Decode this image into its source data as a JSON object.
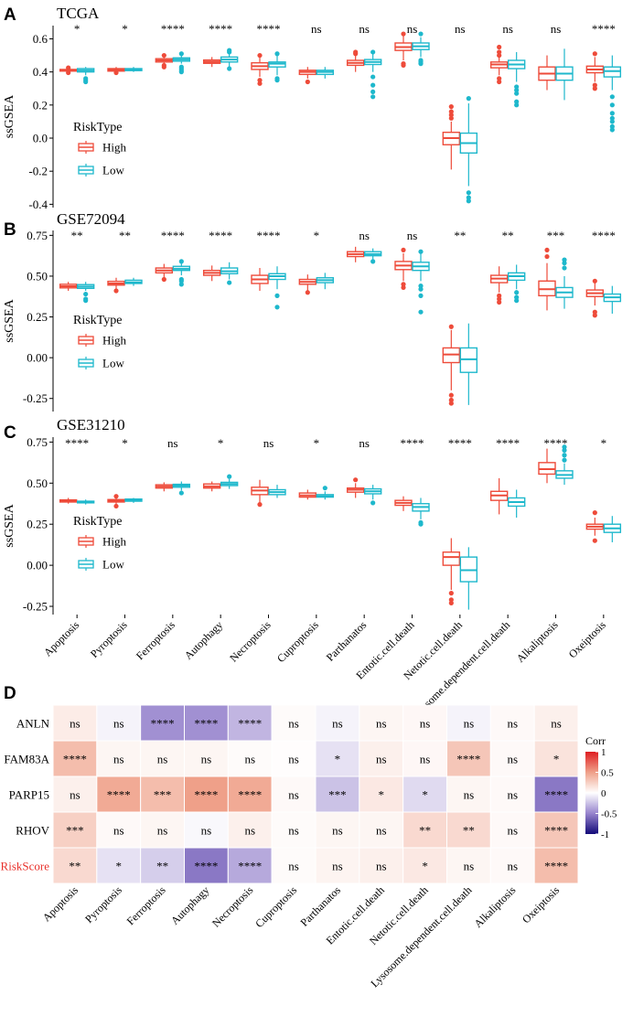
{
  "colors": {
    "high": "#EE4B3A",
    "low": "#1EB8CC",
    "riskscore_label": "#E8302A"
  },
  "box_legend": {
    "title": "RiskType",
    "items": [
      "High",
      "Low"
    ]
  },
  "categories": [
    "Apoptosis",
    "Pyroptosis",
    "Ferroptosis",
    "Autophagy",
    "Necroptosis",
    "Cuproptosis",
    "Parthanatos",
    "Entotic.cell.death",
    "Netotic.cell.death",
    "Lysosome.dependent.cell.death",
    "Alkaliptosis",
    "Oxeiptosis"
  ],
  "panels": [
    {
      "letter": "A",
      "title": "TCGA",
      "ylabel": "ssGSEA",
      "ylim": [
        -0.42,
        0.68
      ],
      "yticks": [
        -0.4,
        -0.2,
        0.0,
        0.2,
        0.4,
        0.6
      ],
      "ytick_labels": [
        "-0.4",
        "-0.2",
        "0.0",
        "0.2",
        "0.4",
        "0.6"
      ],
      "sig": [
        "*",
        "*",
        "****",
        "****",
        "****",
        "ns",
        "ns",
        "ns",
        "ns",
        "ns",
        "ns",
        "****"
      ],
      "high": [
        {
          "lw": 0.4,
          "q1": 0.405,
          "med": 0.41,
          "q3": 0.415,
          "uw": 0.42,
          "out": [
            0.395,
            0.425
          ]
        },
        {
          "lw": 0.4,
          "q1": 0.405,
          "med": 0.412,
          "q3": 0.42,
          "uw": 0.43,
          "out": [
            0.395
          ]
        },
        {
          "lw": 0.445,
          "q1": 0.46,
          "med": 0.47,
          "q3": 0.48,
          "uw": 0.495,
          "out": [
            0.43,
            0.44,
            0.5
          ]
        },
        {
          "lw": 0.43,
          "q1": 0.452,
          "med": 0.462,
          "q3": 0.472,
          "uw": 0.49,
          "out": []
        },
        {
          "lw": 0.37,
          "q1": 0.415,
          "med": 0.435,
          "q3": 0.455,
          "uw": 0.49,
          "out": [
            0.35,
            0.33,
            0.5
          ]
        },
        {
          "lw": 0.36,
          "q1": 0.385,
          "med": 0.4,
          "q3": 0.41,
          "uw": 0.43,
          "out": [
            0.34
          ]
        },
        {
          "lw": 0.4,
          "q1": 0.44,
          "med": 0.455,
          "q3": 0.47,
          "uw": 0.5,
          "out": [
            0.51,
            0.52
          ]
        },
        {
          "lw": 0.47,
          "q1": 0.53,
          "med": 0.55,
          "q3": 0.575,
          "uw": 0.62,
          "out": [
            0.45,
            0.44,
            0.63
          ]
        },
        {
          "lw": -0.19,
          "q1": -0.04,
          "med": 0.0,
          "q3": 0.035,
          "uw": 0.1,
          "out": [
            0.12,
            0.14,
            0.16,
            0.19
          ]
        },
        {
          "lw": 0.38,
          "q1": 0.425,
          "med": 0.445,
          "q3": 0.46,
          "uw": 0.49,
          "out": [
            0.5,
            0.52,
            0.55,
            0.36,
            0.34
          ]
        },
        {
          "lw": 0.29,
          "q1": 0.35,
          "med": 0.39,
          "q3": 0.43,
          "uw": 0.5,
          "out": []
        },
        {
          "lw": 0.34,
          "q1": 0.395,
          "med": 0.415,
          "q3": 0.435,
          "uw": 0.49,
          "out": [
            0.32,
            0.3,
            0.51
          ]
        }
      ],
      "low": [
        {
          "lw": 0.38,
          "q1": 0.4,
          "med": 0.41,
          "q3": 0.42,
          "uw": 0.43,
          "out": [
            0.36,
            0.35,
            0.34
          ]
        },
        {
          "lw": 0.4,
          "q1": 0.408,
          "med": 0.414,
          "q3": 0.42,
          "uw": 0.43,
          "out": []
        },
        {
          "lw": 0.45,
          "q1": 0.465,
          "med": 0.475,
          "q3": 0.485,
          "uw": 0.5,
          "out": [
            0.43,
            0.42,
            0.41,
            0.4,
            0.51
          ]
        },
        {
          "lw": 0.43,
          "q1": 0.46,
          "med": 0.475,
          "q3": 0.49,
          "uw": 0.51,
          "out": [
            0.52,
            0.53,
            0.42
          ]
        },
        {
          "lw": 0.38,
          "q1": 0.43,
          "med": 0.45,
          "q3": 0.46,
          "uw": 0.5,
          "out": [
            0.36,
            0.35,
            0.51
          ]
        },
        {
          "lw": 0.36,
          "q1": 0.385,
          "med": 0.4,
          "q3": 0.41,
          "uw": 0.43,
          "out": []
        },
        {
          "lw": 0.4,
          "q1": 0.445,
          "med": 0.46,
          "q3": 0.475,
          "uw": 0.51,
          "out": [
            0.37,
            0.32,
            0.28,
            0.25,
            0.52
          ]
        },
        {
          "lw": 0.49,
          "q1": 0.535,
          "med": 0.555,
          "q3": 0.575,
          "uw": 0.61,
          "out": [
            0.47,
            0.46,
            0.45,
            0.63
          ]
        },
        {
          "lw": -0.29,
          "q1": -0.09,
          "med": -0.03,
          "q3": 0.03,
          "uw": 0.21,
          "out": [
            -0.33,
            -0.36,
            -0.38,
            0.24
          ]
        },
        {
          "lw": 0.34,
          "q1": 0.42,
          "med": 0.445,
          "q3": 0.47,
          "uw": 0.52,
          "out": [
            0.31,
            0.29,
            0.27,
            0.22,
            0.2
          ]
        },
        {
          "lw": 0.23,
          "q1": 0.35,
          "med": 0.39,
          "q3": 0.43,
          "uw": 0.54,
          "out": []
        },
        {
          "lw": 0.29,
          "q1": 0.37,
          "med": 0.405,
          "q3": 0.43,
          "uw": 0.5,
          "out": [
            0.25,
            0.2,
            0.15,
            0.12,
            0.1,
            0.07,
            0.05
          ]
        }
      ]
    },
    {
      "letter": "B",
      "title": "GSE72094",
      "ylabel": "ssGSEA",
      "ylim": [
        -0.33,
        0.78
      ],
      "yticks": [
        -0.25,
        0.0,
        0.25,
        0.5,
        0.75
      ],
      "ytick_labels": [
        "-0.25",
        "0.00",
        "0.25",
        "0.50",
        "0.75"
      ],
      "sig": [
        "**",
        "**",
        "****",
        "****",
        "****",
        "*",
        "ns",
        "ns",
        "**",
        "**",
        "***",
        "****"
      ],
      "high": [
        {
          "lw": 0.41,
          "q1": 0.428,
          "med": 0.438,
          "q3": 0.45,
          "uw": 0.465,
          "out": []
        },
        {
          "lw": 0.42,
          "q1": 0.445,
          "med": 0.455,
          "q3": 0.468,
          "uw": 0.49,
          "out": [
            0.41
          ]
        },
        {
          "lw": 0.49,
          "q1": 0.52,
          "med": 0.535,
          "q3": 0.55,
          "uw": 0.575,
          "out": [
            0.48
          ]
        },
        {
          "lw": 0.47,
          "q1": 0.505,
          "med": 0.52,
          "q3": 0.535,
          "uw": 0.565,
          "out": []
        },
        {
          "lw": 0.41,
          "q1": 0.455,
          "med": 0.48,
          "q3": 0.505,
          "uw": 0.55,
          "out": []
        },
        {
          "lw": 0.41,
          "q1": 0.45,
          "med": 0.465,
          "q3": 0.48,
          "uw": 0.51,
          "out": [
            0.4
          ]
        },
        {
          "lw": 0.585,
          "q1": 0.62,
          "med": 0.635,
          "q3": 0.65,
          "uw": 0.68,
          "out": []
        },
        {
          "lw": 0.47,
          "q1": 0.54,
          "med": 0.565,
          "q3": 0.59,
          "uw": 0.64,
          "out": [
            0.45,
            0.43,
            0.66
          ]
        },
        {
          "lw": -0.2,
          "q1": -0.03,
          "med": 0.02,
          "q3": 0.06,
          "uw": 0.17,
          "out": [
            -0.23,
            -0.26,
            -0.28,
            0.19
          ]
        },
        {
          "lw": 0.4,
          "q1": 0.46,
          "med": 0.485,
          "q3": 0.505,
          "uw": 0.56,
          "out": [
            0.38,
            0.36,
            0.34
          ]
        },
        {
          "lw": 0.29,
          "q1": 0.38,
          "med": 0.42,
          "q3": 0.47,
          "uw": 0.58,
          "out": [
            0.62,
            0.66
          ]
        },
        {
          "lw": 0.32,
          "q1": 0.375,
          "med": 0.395,
          "q3": 0.415,
          "uw": 0.46,
          "out": [
            0.28,
            0.26,
            0.47
          ]
        }
      ],
      "low": [
        {
          "lw": 0.41,
          "q1": 0.425,
          "med": 0.436,
          "q3": 0.448,
          "uw": 0.465,
          "out": [
            0.39,
            0.36,
            0.35
          ]
        },
        {
          "lw": 0.44,
          "q1": 0.455,
          "med": 0.462,
          "q3": 0.475,
          "uw": 0.49,
          "out": []
        },
        {
          "lw": 0.505,
          "q1": 0.535,
          "med": 0.545,
          "q3": 0.56,
          "uw": 0.58,
          "out": [
            0.48,
            0.47,
            0.45,
            0.59
          ]
        },
        {
          "lw": 0.48,
          "q1": 0.515,
          "med": 0.53,
          "q3": 0.55,
          "uw": 0.585,
          "out": [
            0.46
          ]
        },
        {
          "lw": 0.42,
          "q1": 0.48,
          "med": 0.5,
          "q3": 0.515,
          "uw": 0.56,
          "out": [
            0.38,
            0.31
          ]
        },
        {
          "lw": 0.42,
          "q1": 0.46,
          "med": 0.475,
          "q3": 0.49,
          "uw": 0.52,
          "out": []
        },
        {
          "lw": 0.6,
          "q1": 0.625,
          "med": 0.635,
          "q3": 0.65,
          "uw": 0.67,
          "out": [
            0.59
          ]
        },
        {
          "lw": 0.47,
          "q1": 0.535,
          "med": 0.56,
          "q3": 0.585,
          "uw": 0.64,
          "out": [
            0.44,
            0.42,
            0.38,
            0.28,
            0.65
          ]
        },
        {
          "lw": -0.29,
          "q1": -0.09,
          "med": -0.01,
          "q3": 0.06,
          "uw": 0.21,
          "out": []
        },
        {
          "lw": 0.42,
          "q1": 0.475,
          "med": 0.5,
          "q3": 0.52,
          "uw": 0.57,
          "out": [
            0.4,
            0.37,
            0.35
          ]
        },
        {
          "lw": 0.3,
          "q1": 0.37,
          "med": 0.4,
          "q3": 0.43,
          "uw": 0.5,
          "out": [
            0.55,
            0.58,
            0.6
          ]
        },
        {
          "lw": 0.27,
          "q1": 0.345,
          "med": 0.37,
          "q3": 0.39,
          "uw": 0.44,
          "out": []
        }
      ]
    },
    {
      "letter": "C",
      "title": "GSE31210",
      "ylabel": "ssGSEA",
      "ylim": [
        -0.3,
        0.78
      ],
      "yticks": [
        -0.25,
        0.0,
        0.25,
        0.5,
        0.75
      ],
      "ytick_labels": [
        "-0.25",
        "0.00",
        "0.25",
        "0.50",
        "0.75"
      ],
      "sig": [
        "****",
        "*",
        "ns",
        "*",
        "ns",
        "*",
        "ns",
        "****",
        "****",
        "****",
        "****",
        "*"
      ],
      "high": [
        {
          "lw": 0.375,
          "q1": 0.385,
          "med": 0.39,
          "q3": 0.398,
          "uw": 0.41,
          "out": []
        },
        {
          "lw": 0.37,
          "q1": 0.385,
          "med": 0.393,
          "q3": 0.4,
          "uw": 0.41,
          "out": [
            0.42,
            0.36
          ]
        },
        {
          "lw": 0.45,
          "q1": 0.47,
          "med": 0.48,
          "q3": 0.49,
          "uw": 0.505,
          "out": []
        },
        {
          "lw": 0.45,
          "q1": 0.47,
          "med": 0.48,
          "q3": 0.495,
          "uw": 0.51,
          "out": []
        },
        {
          "lw": 0.38,
          "q1": 0.43,
          "med": 0.455,
          "q3": 0.475,
          "uw": 0.52,
          "out": [
            0.37
          ]
        },
        {
          "lw": 0.4,
          "q1": 0.415,
          "med": 0.425,
          "q3": 0.44,
          "uw": 0.46,
          "out": []
        },
        {
          "lw": 0.41,
          "q1": 0.445,
          "med": 0.46,
          "q3": 0.47,
          "uw": 0.5,
          "out": [
            0.52
          ]
        },
        {
          "lw": 0.33,
          "q1": 0.365,
          "med": 0.38,
          "q3": 0.395,
          "uw": 0.42,
          "out": []
        },
        {
          "lw": -0.15,
          "q1": 0.0,
          "med": 0.05,
          "q3": 0.08,
          "uw": 0.165,
          "out": [
            -0.17,
            -0.21,
            -0.23
          ]
        },
        {
          "lw": 0.31,
          "q1": 0.395,
          "med": 0.425,
          "q3": 0.45,
          "uw": 0.53,
          "out": []
        },
        {
          "lw": 0.5,
          "q1": 0.555,
          "med": 0.585,
          "q3": 0.625,
          "uw": 0.71,
          "out": []
        },
        {
          "lw": 0.18,
          "q1": 0.22,
          "med": 0.235,
          "q3": 0.25,
          "uw": 0.29,
          "out": [
            0.32,
            0.15
          ]
        }
      ],
      "low": [
        {
          "lw": 0.37,
          "q1": 0.38,
          "med": 0.385,
          "q3": 0.39,
          "uw": 0.4,
          "out": []
        },
        {
          "lw": 0.38,
          "q1": 0.39,
          "med": 0.397,
          "q3": 0.403,
          "uw": 0.41,
          "out": []
        },
        {
          "lw": 0.455,
          "q1": 0.475,
          "med": 0.485,
          "q3": 0.493,
          "uw": 0.51,
          "out": [
            0.44
          ]
        },
        {
          "lw": 0.465,
          "q1": 0.485,
          "med": 0.495,
          "q3": 0.505,
          "uw": 0.525,
          "out": [
            0.54
          ]
        },
        {
          "lw": 0.41,
          "q1": 0.43,
          "med": 0.445,
          "q3": 0.46,
          "uw": 0.49,
          "out": []
        },
        {
          "lw": 0.4,
          "q1": 0.415,
          "med": 0.42,
          "q3": 0.43,
          "uw": 0.45,
          "out": [
            0.47
          ]
        },
        {
          "lw": 0.4,
          "q1": 0.435,
          "med": 0.45,
          "q3": 0.465,
          "uw": 0.49,
          "out": [
            0.38
          ]
        },
        {
          "lw": 0.28,
          "q1": 0.33,
          "med": 0.355,
          "q3": 0.375,
          "uw": 0.41,
          "out": [
            0.26,
            0.25
          ]
        },
        {
          "lw": -0.27,
          "q1": -0.1,
          "med": -0.03,
          "q3": 0.05,
          "uw": 0.11,
          "out": []
        },
        {
          "lw": 0.29,
          "q1": 0.36,
          "med": 0.385,
          "q3": 0.41,
          "uw": 0.46,
          "out": []
        },
        {
          "lw": 0.49,
          "q1": 0.53,
          "med": 0.55,
          "q3": 0.575,
          "uw": 0.62,
          "out": [
            0.64,
            0.67,
            0.7,
            0.72
          ]
        },
        {
          "lw": 0.14,
          "q1": 0.2,
          "med": 0.225,
          "q3": 0.25,
          "uw": 0.3,
          "out": []
        }
      ]
    }
  ],
  "heatmap": {
    "letter": "D",
    "rows": [
      "ANLN",
      "FAM83A",
      "PARP15",
      "RHOV",
      "RiskScore"
    ],
    "columns": [
      "Apoptosis",
      "Pyroptosis",
      "Ferroptosis",
      "Autophagy",
      "Necroptosis",
      "Cuproptosis",
      "Parthanatos",
      "Entotic.cell.death",
      "Netotic.cell.death",
      "Lysosome.dependent.cell.death",
      "Alkaliptosis",
      "Oxeiptosis"
    ],
    "values": [
      [
        0.1,
        -0.05,
        -0.45,
        -0.45,
        -0.3,
        0.02,
        -0.05,
        0.05,
        0.04,
        -0.05,
        0.03,
        0.08
      ],
      [
        0.35,
        0.05,
        0.05,
        0.05,
        0.02,
        0.01,
        -0.12,
        0.08,
        0.04,
        0.3,
        0.03,
        0.15
      ],
      [
        0.08,
        0.45,
        0.35,
        0.5,
        0.45,
        0.03,
        -0.25,
        0.12,
        -0.15,
        0.05,
        0.03,
        -0.55
      ],
      [
        0.25,
        0.03,
        0.05,
        -0.03,
        0.08,
        0.02,
        0.05,
        0.05,
        0.2,
        0.2,
        0.03,
        0.3
      ],
      [
        0.2,
        -0.12,
        -0.2,
        -0.55,
        -0.35,
        0.02,
        0.06,
        0.08,
        0.12,
        0.05,
        0.03,
        0.35
      ]
    ],
    "labels": [
      [
        "ns",
        "ns",
        "****",
        "****",
        "****",
        "ns",
        "ns",
        "ns",
        "ns",
        "ns",
        "ns",
        "ns"
      ],
      [
        "****",
        "ns",
        "ns",
        "ns",
        "ns",
        "ns",
        "*",
        "ns",
        "ns",
        "****",
        "ns",
        "*"
      ],
      [
        "ns",
        "****",
        "***",
        "****",
        "****",
        "ns",
        "***",
        "*",
        "*",
        "ns",
        "ns",
        "****"
      ],
      [
        "***",
        "ns",
        "ns",
        "ns",
        "ns",
        "ns",
        "ns",
        "ns",
        "**",
        "**",
        "ns",
        "****"
      ],
      [
        "**",
        "*",
        "**",
        "****",
        "****",
        "ns",
        "ns",
        "ns",
        "*",
        "ns",
        "ns",
        "****"
      ]
    ],
    "colorbar": {
      "title": "Corr",
      "ticks": [
        1,
        0.5,
        0,
        -0.5,
        -1
      ],
      "tick_labels": [
        "1",
        "0.5",
        "0",
        "-0.5",
        "-1"
      ]
    }
  }
}
